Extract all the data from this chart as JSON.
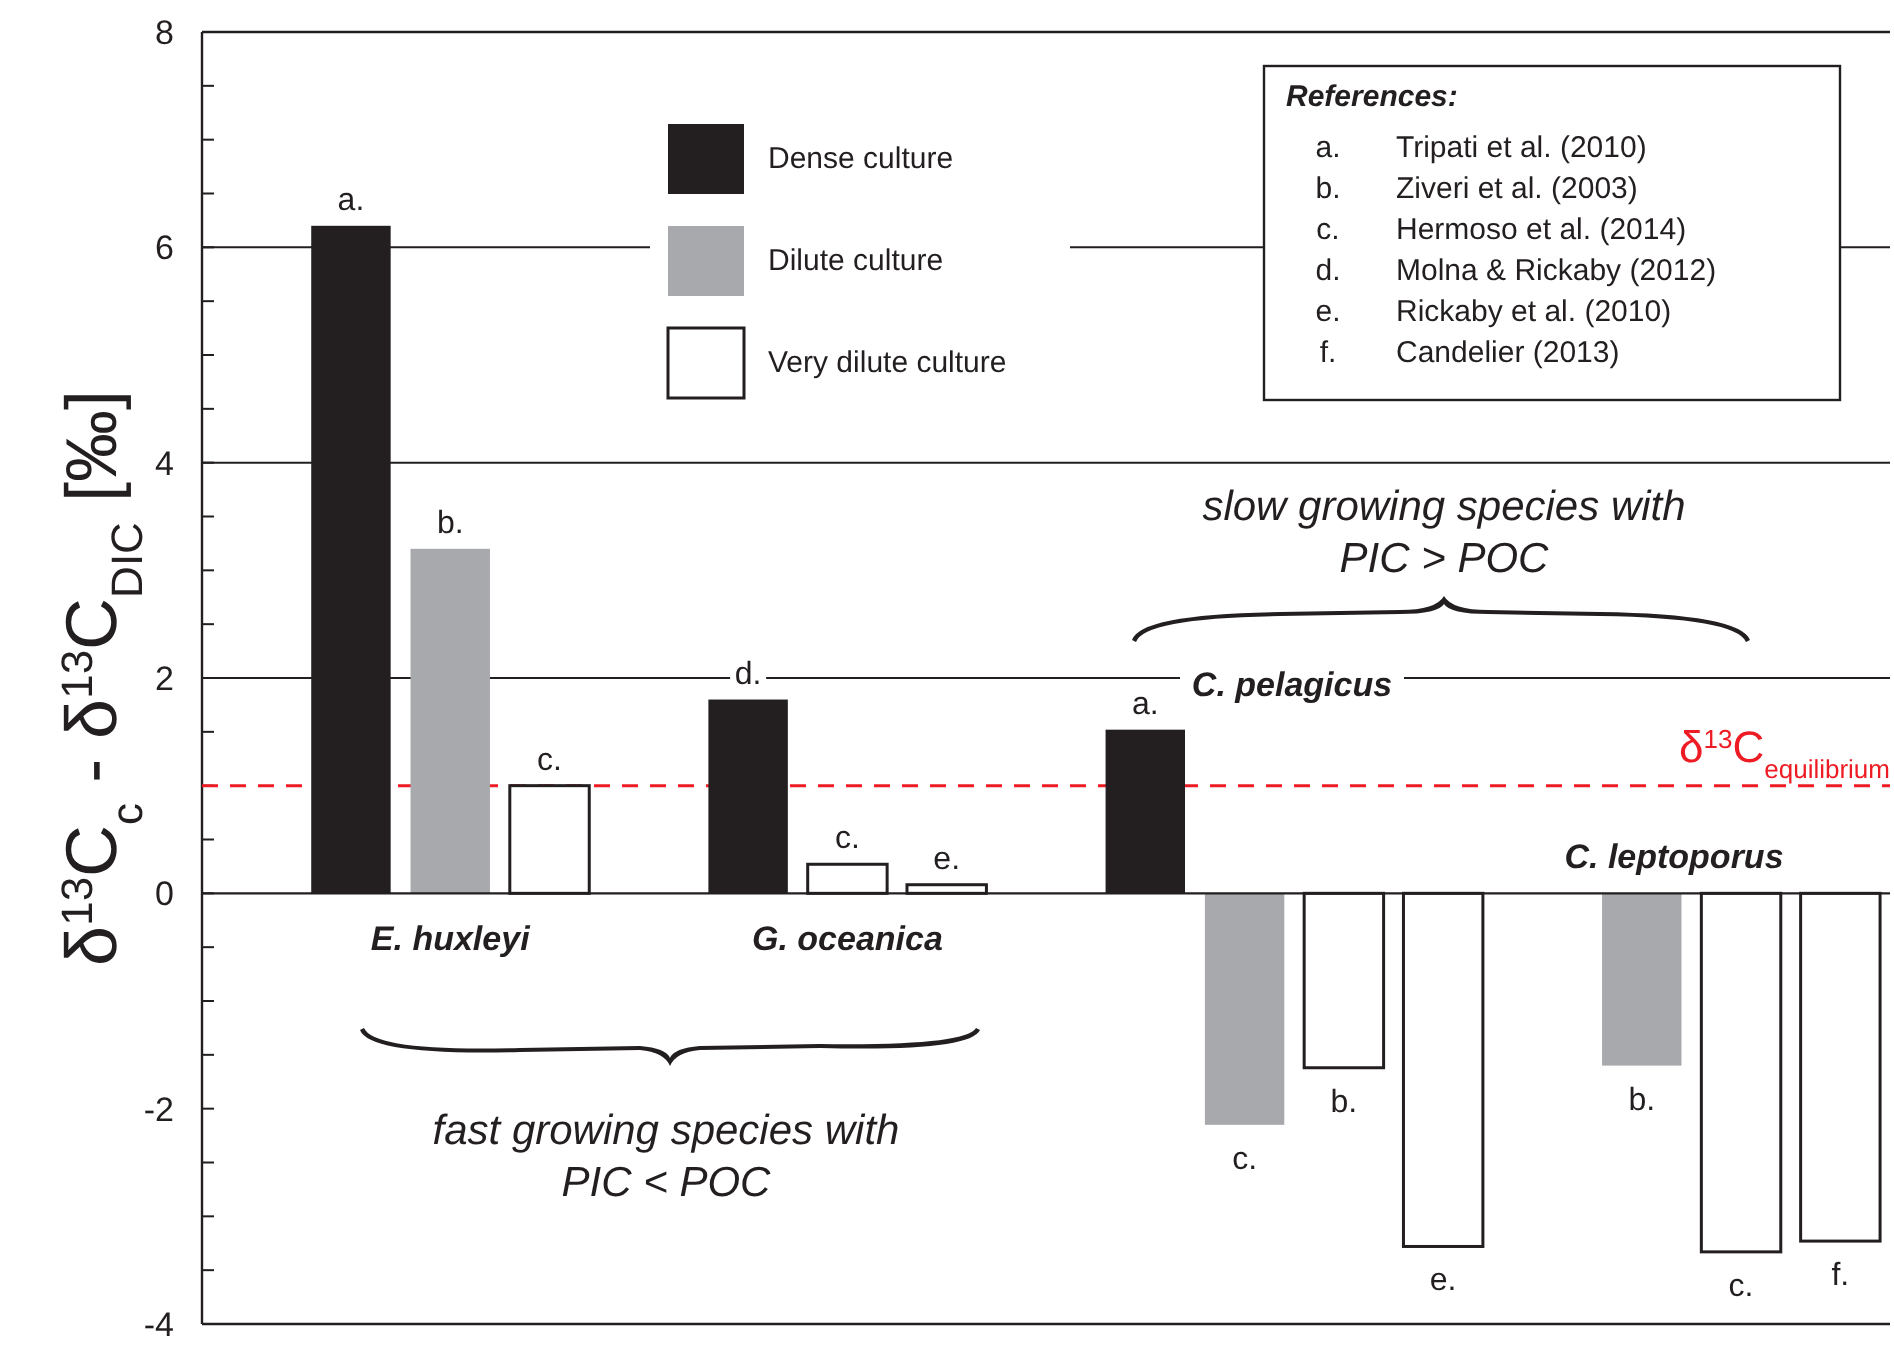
{
  "chart_data": {
    "type": "bar",
    "ylabel": "δ$^{13}$C$_{c}$ - δ$^{13}$C$_{DIC}$ [‰]",
    "categories": [
      null,
      null,
      null,
      null,
      null,
      null,
      null,
      null,
      null,
      null,
      null,
      null,
      null,
      null,
      null,
      null,
      null
    ],
    "series": [
      {
        "name": "Dense culture",
        "color": "#231f20",
        "values": [
          null,
          6.2,
          null,
          null,
          null,
          1.8,
          null,
          null,
          null,
          1.52,
          null,
          null,
          null,
          null,
          null,
          null,
          null
        ],
        "value_labels": [
          null,
          "a.",
          null,
          null,
          null,
          "d.",
          null,
          null,
          null,
          "a.",
          null,
          null,
          null,
          null,
          null,
          null,
          null
        ]
      },
      {
        "name": "Dilute culture",
        "color": "#a7a9ac",
        "values": [
          null,
          null,
          3.2,
          null,
          null,
          null,
          null,
          null,
          null,
          null,
          -2.15,
          null,
          null,
          null,
          -1.6,
          null,
          null
        ],
        "value_labels": [
          null,
          null,
          "b.",
          null,
          null,
          null,
          null,
          null,
          null,
          null,
          "c.",
          null,
          null,
          null,
          "b.",
          null,
          null
        ]
      },
      {
        "name": "Very dilute culture",
        "color": "#ffffff",
        "values": [
          null,
          null,
          null,
          1.0,
          null,
          null,
          0.27,
          0.08,
          null,
          null,
          null,
          -1.62,
          -3.28,
          null,
          null,
          -3.33,
          -3.23
        ],
        "value_labels": [
          null,
          null,
          null,
          "c.",
          null,
          null,
          "c.",
          "e.",
          null,
          null,
          null,
          "b.",
          "e.",
          null,
          null,
          "c.",
          "f."
        ]
      }
    ],
    "ylim": [
      -4,
      8
    ],
    "yticks": [
      -4,
      {
        "value": -3.5,
        "label": null
      },
      {
        "value": -3,
        "label": null
      },
      {
        "value": -2.5,
        "label": null
      },
      -2,
      {
        "value": -1.5,
        "label": null
      },
      {
        "value": -1,
        "label": null
      },
      {
        "value": -0.5,
        "label": null
      },
      0,
      {
        "value": 0.5,
        "label": null
      },
      {
        "value": 1,
        "label": null
      },
      {
        "value": 1.5,
        "label": null
      },
      2,
      {
        "value": 2.5,
        "label": null
      },
      {
        "value": 3,
        "label": null
      },
      {
        "value": 3.5,
        "label": null
      },
      4,
      {
        "value": 4.5,
        "label": null
      },
      {
        "value": 5,
        "label": null
      },
      {
        "value": 5.5,
        "label": null
      },
      6,
      {
        "value": 6.5,
        "label": null
      },
      {
        "value": 7,
        "label": null
      },
      {
        "value": 7.5,
        "label": null
      },
      8
    ],
    "legend": "top",
    "ref_lines": [
      {
        "axis": "y",
        "value": 1,
        "label": "δ$^{13}$C$_{equilibrium}$",
        "color": "#ed1c24",
        "line_style": "dashed"
      },
      {
        "axis": "y",
        "value": 2,
        "color": "#231f20",
        "line_style": "solid"
      },
      {
        "axis": "y",
        "value": 4,
        "color": "#231f20",
        "line_style": "solid"
      },
      {
        "axis": "y",
        "value": 6,
        "color": "#231f20",
        "line_style": "solid"
      }
    ],
    "annotations": [
      "E. huxleyi",
      "G. oceanica",
      "C. pelagicus",
      "C. leptoporus",
      "fast growing species with PIC < POC",
      "slow growing species with PIC > POC",
      "References:",
      "a.\tTripati et al. (2010)",
      "b.\tZiveri et al. (2003)",
      "c.\tHermoso et al. (2014)",
      "d.\tMolna & Rickaby (2012)",
      "e.\tRickaby et al. (2010)",
      "f.\tCandelier (2013)"
    ]
  }
}
